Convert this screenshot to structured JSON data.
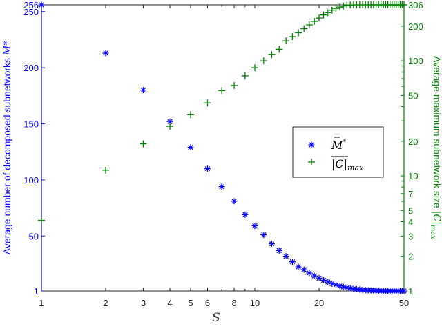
{
  "chart_data": {
    "type": "scatter",
    "title": "",
    "xlabel": "S",
    "xscale": "log",
    "xlim": [
      1,
      50
    ],
    "x_ticks": [
      1,
      2,
      3,
      4,
      5,
      6,
      8,
      10,
      20,
      50
    ],
    "x_tick_labels": [
      "1",
      "2",
      "3",
      "4",
      "5",
      "6",
      "8",
      "10",
      "20",
      "50"
    ],
    "y_left": {
      "label": "Average number of decomposed subnetworks",
      "label_symbol": "M̄*",
      "scale": "linear",
      "lim": [
        1,
        256
      ],
      "ticks": [
        1,
        50,
        100,
        150,
        200,
        250,
        256
      ],
      "tick_labels": [
        "1",
        "50",
        "100",
        "150",
        "200",
        "250",
        "256"
      ],
      "color": "#0000ff"
    },
    "y_right": {
      "label": "Average maximum subnetwork size",
      "label_symbol": "|C|max",
      "scale": "log",
      "lim": [
        1,
        306
      ],
      "ticks": [
        1,
        2,
        3,
        4,
        5,
        7,
        10,
        20,
        50,
        100,
        200,
        306
      ],
      "tick_labels": [
        "1",
        "2",
        "3",
        "4",
        "5",
        "7",
        "10",
        "20",
        "50",
        "100",
        "200",
        "306"
      ],
      "color": "#008000"
    },
    "legend": {
      "position": "right-center",
      "entries": [
        {
          "marker": "asterisk",
          "label": "M̄*",
          "color": "#0000ff"
        },
        {
          "marker": "plus",
          "label": "|C|max",
          "color": "#008000"
        }
      ]
    },
    "grid": false,
    "x": [
      1,
      2,
      3,
      4,
      5,
      6,
      7,
      8,
      9,
      10,
      11,
      12,
      13,
      14,
      15,
      16,
      17,
      18,
      19,
      20,
      21,
      22,
      23,
      24,
      25,
      26,
      27,
      28,
      29,
      30,
      31,
      32,
      33,
      34,
      35,
      36,
      37,
      38,
      39,
      40,
      41,
      42,
      43,
      44,
      45,
      46,
      47,
      48,
      49,
      50
    ],
    "series": [
      {
        "name": "M̄*",
        "axis": "left",
        "marker": "asterisk",
        "color": "#0000ff",
        "values": [
          256,
          213,
          180,
          152,
          129,
          110,
          94,
          81,
          69,
          59,
          51,
          43,
          37,
          32,
          27,
          22.5,
          20,
          17,
          14.5,
          12.5,
          10.5,
          9,
          7.5,
          6.5,
          5.5,
          4.5,
          4,
          3.5,
          3,
          2.6,
          2.3,
          2,
          1.8,
          1.6,
          1.5,
          1.4,
          1.3,
          1.2,
          1.15,
          1.1,
          1.08,
          1.06,
          1.05,
          1.04,
          1.03,
          1.02,
          1.01,
          1,
          1,
          1
        ]
      },
      {
        "name": "|C|max",
        "axis": "right",
        "marker": "plus",
        "color": "#008000",
        "values": [
          4.1,
          11.2,
          19,
          27,
          34,
          43,
          55,
          61,
          74,
          87,
          100,
          113,
          126,
          149,
          162,
          175,
          190,
          205,
          220,
          235,
          250,
          262,
          275,
          285,
          293,
          299,
          303,
          305,
          306,
          306,
          306,
          306,
          306,
          306,
          306,
          306,
          306,
          306,
          306,
          306,
          306,
          306,
          306,
          306,
          306,
          306,
          306,
          306,
          306,
          306
        ]
      }
    ]
  }
}
